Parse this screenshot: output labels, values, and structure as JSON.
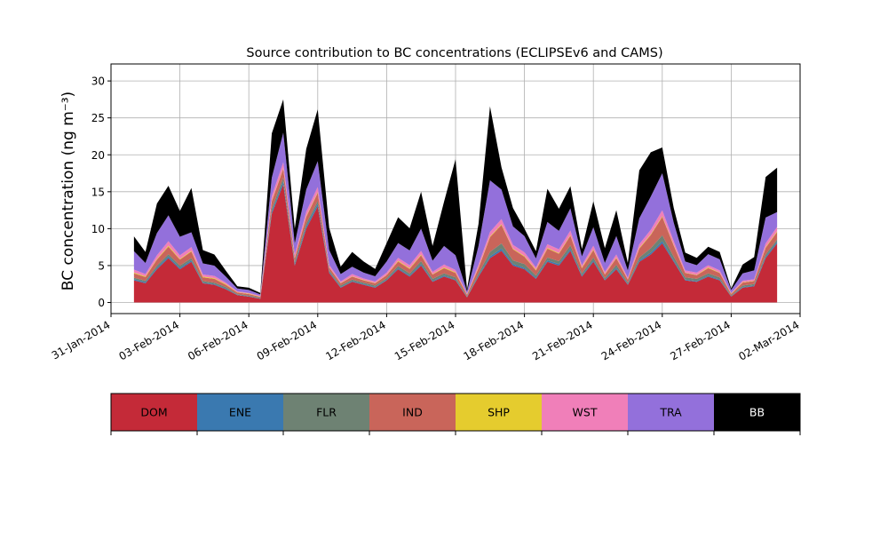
{
  "chart_data": {
    "type": "area",
    "title": "Source contribution to BC concentrations (ECLIPSEv6 and CAMS)",
    "ylabel": "BC concentration (ng m⁻³)",
    "xlabel": "",
    "xlim": [
      "2014-01-31",
      "2014-03-02"
    ],
    "ylim": [
      -1.5,
      32.3
    ],
    "yticks": [
      0,
      5,
      10,
      15,
      20,
      25,
      30
    ],
    "xticks": [
      "2014-01-31",
      "2014-02-03",
      "2014-02-06",
      "2014-02-09",
      "2014-02-12",
      "2014-02-15",
      "2014-02-18",
      "2014-02-21",
      "2014-02-24",
      "2014-02-27",
      "2014-03-02"
    ],
    "xtick_labels": [
      "31-Jan-2014",
      "03-Feb-2014",
      "06-Feb-2014",
      "09-Feb-2014",
      "12-Feb-2014",
      "15-Feb-2014",
      "18-Feb-2014",
      "21-Feb-2014",
      "24-Feb-2014",
      "27-Feb-2014",
      "02-Mar-2014"
    ],
    "grid": true,
    "stacked": true,
    "x": [
      "2014-02-01",
      "2014-02-01T12:00",
      "2014-02-02",
      "2014-02-02T12:00",
      "2014-02-03",
      "2014-02-03T12:00",
      "2014-02-04",
      "2014-02-04T12:00",
      "2014-02-05",
      "2014-02-05T12:00",
      "2014-02-06",
      "2014-02-06T12:00",
      "2014-02-07",
      "2014-02-07T12:00",
      "2014-02-08",
      "2014-02-08T12:00",
      "2014-02-09",
      "2014-02-09T12:00",
      "2014-02-10",
      "2014-02-10T12:00",
      "2014-02-11",
      "2014-02-11T12:00",
      "2014-02-12",
      "2014-02-12T12:00",
      "2014-02-13",
      "2014-02-13T12:00",
      "2014-02-14",
      "2014-02-14T12:00",
      "2014-02-15",
      "2014-02-15T12:00",
      "2014-02-16",
      "2014-02-16T12:00",
      "2014-02-17",
      "2014-02-17T12:00",
      "2014-02-18",
      "2014-02-18T12:00",
      "2014-02-19",
      "2014-02-19T12:00",
      "2014-02-20",
      "2014-02-20T12:00",
      "2014-02-21",
      "2014-02-21T12:00",
      "2014-02-22",
      "2014-02-22T12:00",
      "2014-02-23",
      "2014-02-23T12:00",
      "2014-02-24",
      "2014-02-24T12:00",
      "2014-02-25",
      "2014-02-25T12:00",
      "2014-02-26",
      "2014-02-26T12:00",
      "2014-02-27",
      "2014-02-27T12:00",
      "2014-02-28",
      "2014-02-28T12:00",
      "2014-03-01"
    ],
    "series": [
      {
        "name": "DOM",
        "color": "#c42a38",
        "values": [
          3.0,
          2.6,
          4.5,
          6.0,
          4.5,
          5.5,
          2.6,
          2.4,
          1.8,
          1.0,
          0.8,
          0.5,
          12.0,
          16.0,
          5.0,
          10.0,
          13.0,
          4.0,
          2.0,
          2.8,
          2.4,
          2.0,
          3.0,
          4.5,
          3.5,
          5.0,
          2.8,
          3.5,
          3.0,
          0.7,
          3.5,
          6.0,
          7.0,
          5.0,
          4.5,
          3.2,
          5.5,
          5.0,
          7.0,
          3.5,
          5.5,
          3.0,
          4.5,
          2.4,
          5.5,
          6.5,
          8.0,
          5.5,
          3.0,
          2.8,
          3.5,
          3.0,
          0.8,
          2.0,
          2.2,
          6.0,
          8.0
        ]
      },
      {
        "name": "ENE",
        "color": "#3a79b0",
        "values": [
          0.15,
          0.15,
          0.2,
          0.25,
          0.2,
          0.2,
          0.1,
          0.1,
          0.1,
          0.05,
          0.05,
          0.05,
          0.3,
          0.4,
          0.2,
          0.3,
          0.35,
          0.15,
          0.1,
          0.1,
          0.1,
          0.1,
          0.1,
          0.15,
          0.15,
          0.2,
          0.1,
          0.15,
          0.1,
          0.05,
          0.15,
          0.25,
          0.3,
          0.2,
          0.2,
          0.15,
          0.2,
          0.2,
          0.25,
          0.15,
          0.2,
          0.1,
          0.2,
          0.1,
          0.2,
          0.25,
          0.3,
          0.2,
          0.1,
          0.1,
          0.15,
          0.1,
          0.05,
          0.1,
          0.1,
          0.2,
          0.25
        ]
      },
      {
        "name": "FLR",
        "color": "#6e8273",
        "values": [
          0.2,
          0.2,
          0.3,
          0.3,
          0.3,
          0.3,
          0.2,
          0.2,
          0.2,
          0.1,
          0.1,
          0.1,
          0.4,
          0.5,
          0.3,
          0.4,
          0.4,
          0.2,
          0.2,
          0.2,
          0.2,
          0.2,
          0.2,
          0.3,
          0.3,
          0.4,
          0.3,
          0.3,
          0.3,
          0.1,
          0.3,
          0.6,
          0.7,
          0.5,
          0.5,
          0.3,
          0.4,
          0.4,
          0.5,
          0.3,
          0.4,
          0.2,
          0.4,
          0.2,
          0.4,
          0.6,
          0.8,
          0.5,
          0.3,
          0.3,
          0.3,
          0.3,
          0.1,
          0.2,
          0.2,
          0.3,
          0.3
        ]
      },
      {
        "name": "IND",
        "color": "#c9655a",
        "values": [
          0.6,
          0.5,
          0.8,
          1.0,
          0.8,
          0.9,
          0.5,
          0.5,
          0.3,
          0.2,
          0.2,
          0.1,
          1.0,
          1.2,
          0.5,
          0.9,
          1.1,
          0.4,
          0.3,
          0.4,
          0.3,
          0.3,
          0.4,
          0.6,
          0.6,
          0.8,
          0.6,
          0.7,
          0.6,
          0.2,
          0.7,
          2.0,
          2.5,
          1.5,
          1.0,
          0.7,
          1.2,
          1.0,
          1.3,
          0.7,
          1.0,
          0.5,
          0.9,
          0.4,
          1.2,
          1.8,
          2.5,
          1.5,
          0.6,
          0.5,
          0.7,
          0.6,
          0.2,
          0.4,
          0.4,
          0.9,
          1.0
        ]
      },
      {
        "name": "SHP",
        "color": "#e5cc2e",
        "values": [
          0.1,
          0.1,
          0.1,
          0.15,
          0.1,
          0.1,
          0.1,
          0.1,
          0.1,
          0.05,
          0.05,
          0.05,
          0.1,
          0.1,
          0.1,
          0.1,
          0.1,
          0.05,
          0.05,
          0.05,
          0.05,
          0.05,
          0.05,
          0.1,
          0.1,
          0.1,
          0.05,
          0.1,
          0.1,
          0.05,
          0.1,
          0.1,
          0.1,
          0.1,
          0.1,
          0.1,
          0.1,
          0.1,
          0.1,
          0.1,
          0.1,
          0.05,
          0.1,
          0.05,
          0.1,
          0.1,
          0.1,
          0.1,
          0.05,
          0.05,
          0.1,
          0.05,
          0.05,
          0.05,
          0.05,
          0.1,
          0.1
        ]
      },
      {
        "name": "WST",
        "color": "#f07fb9",
        "values": [
          0.4,
          0.3,
          0.5,
          0.6,
          0.5,
          0.5,
          0.3,
          0.3,
          0.2,
          0.1,
          0.1,
          0.1,
          0.6,
          0.8,
          0.4,
          0.6,
          0.7,
          0.3,
          0.2,
          0.3,
          0.2,
          0.2,
          0.3,
          0.4,
          0.4,
          0.5,
          0.3,
          0.4,
          0.3,
          0.1,
          0.4,
          0.6,
          0.7,
          0.5,
          0.5,
          0.3,
          0.5,
          0.5,
          0.6,
          0.3,
          0.5,
          0.3,
          0.4,
          0.2,
          0.5,
          0.6,
          0.8,
          0.5,
          0.3,
          0.3,
          0.3,
          0.3,
          0.1,
          0.2,
          0.2,
          0.5,
          0.6
        ]
      },
      {
        "name": "TRA",
        "color": "#9370db",
        "values": [
          2.5,
          1.5,
          3.0,
          3.5,
          2.5,
          2.0,
          1.5,
          1.4,
          0.8,
          0.4,
          0.4,
          0.2,
          2.5,
          4.0,
          1.5,
          3.0,
          3.5,
          2.0,
          1.0,
          1.0,
          0.8,
          0.7,
          1.5,
          2.0,
          2.0,
          3.0,
          1.5,
          2.5,
          2.0,
          0.3,
          2.5,
          7.0,
          4.0,
          2.5,
          2.2,
          1.2,
          3.0,
          2.5,
          3.0,
          1.2,
          2.5,
          1.2,
          2.5,
          1.0,
          3.5,
          4.5,
          5.0,
          2.5,
          1.2,
          1.0,
          1.5,
          1.5,
          0.4,
          1.0,
          1.2,
          3.5,
          2.0
        ]
      },
      {
        "name": "BB",
        "color": "#000000",
        "values": [
          2.0,
          1.5,
          4.0,
          4.0,
          3.5,
          6.0,
          1.8,
          1.5,
          0.8,
          0.3,
          0.3,
          0.2,
          6.0,
          4.5,
          2.0,
          5.5,
          7.0,
          3.0,
          1.0,
          2.0,
          1.5,
          1.0,
          2.5,
          3.5,
          3.0,
          5.0,
          2.0,
          6.0,
          13.0,
          0.3,
          3.0,
          10.0,
          3.0,
          2.5,
          1.0,
          1.0,
          4.5,
          3.0,
          3.0,
          1.0,
          3.5,
          2.0,
          3.5,
          1.0,
          6.5,
          6.0,
          3.5,
          2.0,
          1.2,
          1.0,
          1.0,
          1.0,
          0.2,
          1.2,
          1.8,
          5.5,
          6.0
        ]
      }
    ],
    "legend": {
      "placement": "bottom-center-separate",
      "entries": [
        "DOM",
        "ENE",
        "FLR",
        "IND",
        "SHP",
        "WST",
        "TRA",
        "BB"
      ]
    }
  }
}
